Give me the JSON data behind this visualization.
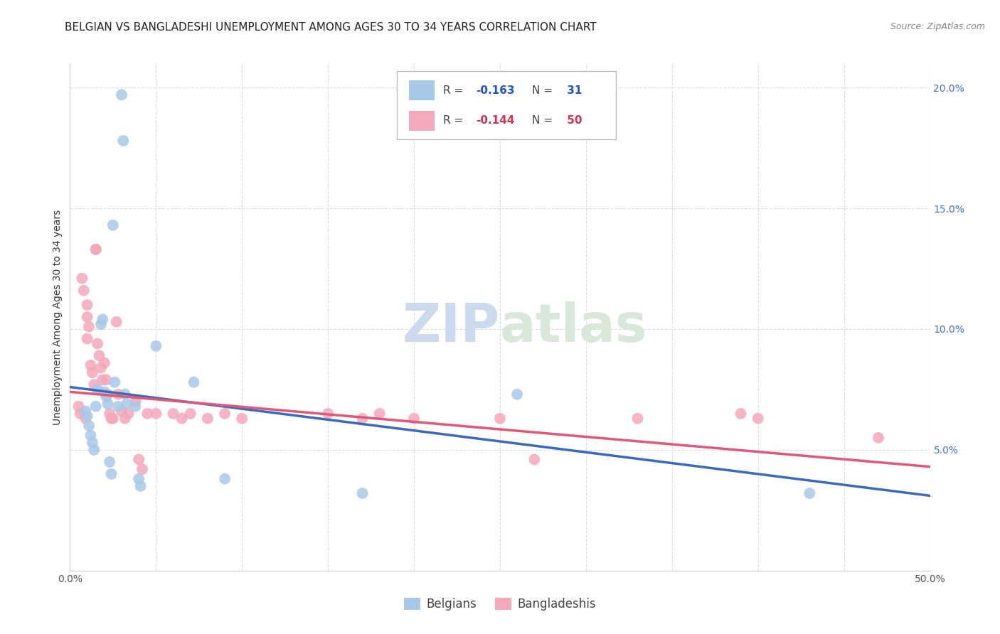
{
  "title": "BELGIAN VS BANGLADESHI UNEMPLOYMENT AMONG AGES 30 TO 34 YEARS CORRELATION CHART",
  "source": "Source: ZipAtlas.com",
  "ylabel": "Unemployment Among Ages 30 to 34 years",
  "xlim": [
    0,
    0.5
  ],
  "ylim": [
    0,
    0.21
  ],
  "xticks": [
    0.0,
    0.05,
    0.1,
    0.15,
    0.2,
    0.25,
    0.3,
    0.35,
    0.4,
    0.45,
    0.5
  ],
  "yticks": [
    0.0,
    0.05,
    0.1,
    0.15,
    0.2
  ],
  "blue_color": "#a8c8e8",
  "pink_color": "#f4a8ba",
  "blue_line_color": "#3a6bba",
  "pink_line_color": "#e05878",
  "blue_scatter_x": [
    0.009,
    0.01,
    0.011,
    0.012,
    0.013,
    0.014,
    0.015,
    0.016,
    0.018,
    0.019,
    0.02,
    0.021,
    0.022,
    0.023,
    0.024,
    0.025,
    0.026,
    0.028,
    0.03,
    0.031,
    0.032,
    0.033,
    0.038,
    0.04,
    0.041,
    0.05,
    0.072,
    0.09,
    0.17,
    0.26,
    0.43
  ],
  "blue_scatter_y": [
    0.066,
    0.064,
    0.06,
    0.056,
    0.053,
    0.05,
    0.068,
    0.075,
    0.102,
    0.104,
    0.074,
    0.072,
    0.069,
    0.045,
    0.04,
    0.143,
    0.078,
    0.068,
    0.197,
    0.178,
    0.073,
    0.069,
    0.068,
    0.038,
    0.035,
    0.093,
    0.078,
    0.038,
    0.032,
    0.073,
    0.032
  ],
  "pink_scatter_x": [
    0.005,
    0.006,
    0.007,
    0.008,
    0.009,
    0.01,
    0.01,
    0.011,
    0.012,
    0.013,
    0.014,
    0.015,
    0.016,
    0.017,
    0.018,
    0.019,
    0.02,
    0.021,
    0.022,
    0.023,
    0.024,
    0.025,
    0.027,
    0.028,
    0.03,
    0.032,
    0.034,
    0.038,
    0.04,
    0.042,
    0.045,
    0.05,
    0.06,
    0.065,
    0.07,
    0.08,
    0.09,
    0.1,
    0.15,
    0.17,
    0.18,
    0.2,
    0.25,
    0.27,
    0.33,
    0.39,
    0.4,
    0.01,
    0.015,
    0.47
  ],
  "pink_scatter_y": [
    0.068,
    0.065,
    0.121,
    0.116,
    0.063,
    0.11,
    0.105,
    0.101,
    0.085,
    0.082,
    0.077,
    0.133,
    0.094,
    0.089,
    0.084,
    0.079,
    0.086,
    0.079,
    0.073,
    0.065,
    0.063,
    0.063,
    0.103,
    0.073,
    0.066,
    0.063,
    0.065,
    0.07,
    0.046,
    0.042,
    0.065,
    0.065,
    0.065,
    0.063,
    0.065,
    0.063,
    0.065,
    0.063,
    0.065,
    0.063,
    0.065,
    0.063,
    0.063,
    0.046,
    0.063,
    0.065,
    0.063,
    0.096,
    0.133,
    0.055
  ],
  "blue_line_x": [
    0.0,
    0.5
  ],
  "blue_line_y": [
    0.076,
    0.031
  ],
  "pink_line_x": [
    0.0,
    0.5
  ],
  "pink_line_y": [
    0.074,
    0.043
  ],
  "watermark_zip": "ZIP",
  "watermark_atlas": "atlas",
  "bg_color": "#ffffff",
  "grid_color": "#dddddd",
  "title_fontsize": 11,
  "axis_label_fontsize": 10,
  "tick_fontsize": 10,
  "right_tick_color": "#4472c4",
  "legend_blue_R": "R = ",
  "legend_blue_Rval": "-0.163",
  "legend_blue_N": "N = ",
  "legend_blue_Nval": " 31",
  "legend_pink_R": "R = ",
  "legend_pink_Rval": "-0.144",
  "legend_pink_N": "N = ",
  "legend_pink_Nval": " 50",
  "legend_blue_Rval_color": "#2255cc",
  "legend_blue_Nval_color": "#2255cc",
  "legend_pink_Rval_color": "#cc3355",
  "legend_pink_Nval_color": "#cc3355"
}
